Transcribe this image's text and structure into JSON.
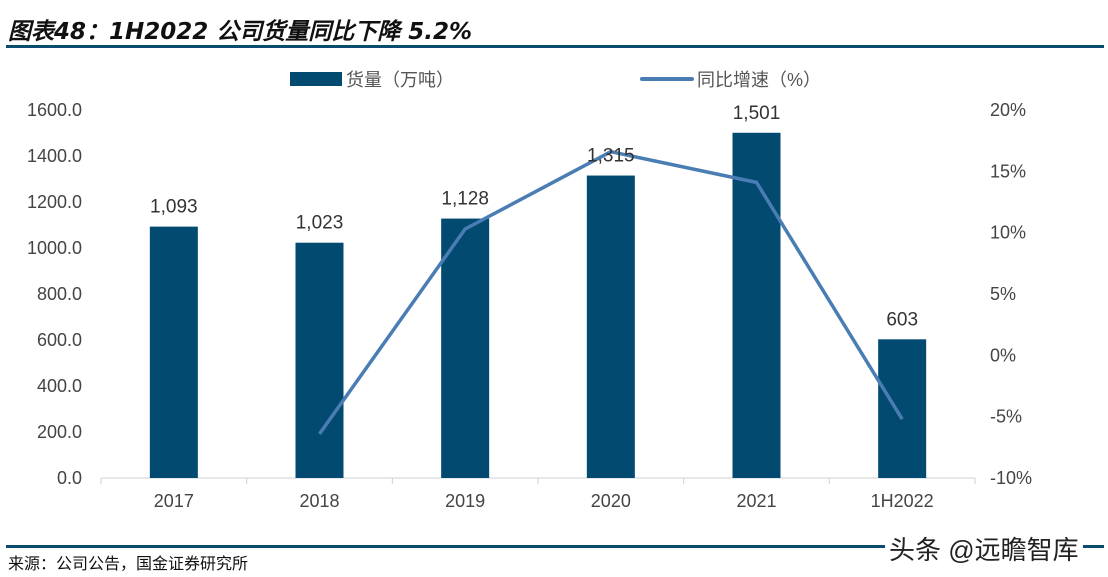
{
  "title": "图表48：1H2022 公司货量同比下降 5.2%",
  "source": "来源：公司公告，国金证券研究所",
  "watermark": "头条 @远瞻智库",
  "chart_data": {
    "type": "bar+line",
    "categories": [
      "2017",
      "2018",
      "2019",
      "2020",
      "2021",
      "1H2022"
    ],
    "series": [
      {
        "name": "货量（万吨）",
        "type": "bar",
        "axis": "left",
        "values": [
          1093,
          1023,
          1128,
          1315,
          1501,
          603
        ],
        "labels": [
          "1,093",
          "1,023",
          "1,128",
          "1,315",
          "1,501",
          "603"
        ],
        "color": "#024a70"
      },
      {
        "name": "同比增速（%）",
        "type": "line",
        "axis": "right",
        "values": [
          null,
          -6.4,
          10.3,
          16.6,
          14.1,
          -5.2
        ],
        "color": "#4a7db4"
      }
    ],
    "left_axis": {
      "ylim": [
        0,
        1600
      ],
      "ticks": [
        "0.0",
        "200.0",
        "400.0",
        "600.0",
        "800.0",
        "1000.0",
        "1200.0",
        "1400.0",
        "1600.0"
      ]
    },
    "right_axis": {
      "ylim": [
        -10,
        20
      ],
      "ticks": [
        "-10%",
        "-5%",
        "0%",
        "5%",
        "10%",
        "15%",
        "20%"
      ]
    },
    "legend": "top",
    "grid": false
  }
}
